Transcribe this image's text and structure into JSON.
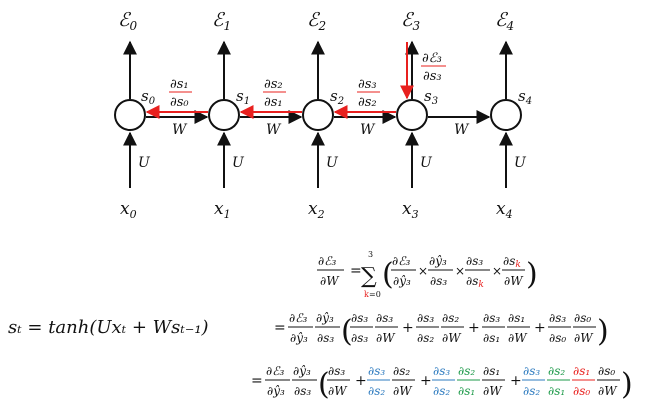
{
  "diagram": {
    "error_terms": [
      {
        "sym": "ℰ",
        "sub": "0"
      },
      {
        "sym": "ℰ",
        "sub": "1"
      },
      {
        "sym": "ℰ",
        "sub": "2"
      },
      {
        "sym": "ℰ",
        "sub": "3"
      },
      {
        "sym": "ℰ",
        "sub": "4"
      }
    ],
    "states": [
      {
        "sym": "s",
        "sub": "0"
      },
      {
        "sym": "s",
        "sub": "1"
      },
      {
        "sym": "s",
        "sub": "2"
      },
      {
        "sym": "s",
        "sub": "3"
      },
      {
        "sym": "s",
        "sub": "4"
      }
    ],
    "inputs": [
      {
        "sym": "x",
        "sub": "0"
      },
      {
        "sym": "x",
        "sub": "1"
      },
      {
        "sym": "x",
        "sub": "2"
      },
      {
        "sym": "x",
        "sub": "3"
      },
      {
        "sym": "x",
        "sub": "4"
      }
    ],
    "input_weight": "U",
    "recurrent_weight": "W",
    "grad_labels": [
      {
        "num": "∂s₁",
        "den": "∂s₀"
      },
      {
        "num": "∂s₂",
        "den": "∂s₁"
      },
      {
        "num": "∂s₃",
        "den": "∂s₂"
      },
      {
        "num": "∂ℰ₃",
        "den": "∂s₃"
      }
    ]
  },
  "state_equation": "sₜ = tanh(Uxₜ + Wsₜ₋₁)",
  "gradient_equations": {
    "line1_lhs": {
      "num": "∂ℰ₃",
      "den": "∂W"
    },
    "sum_top": "3",
    "sum_bottom": "k=0",
    "colors": {
      "red": "#e8201e",
      "blue": "#2e7bbf",
      "green": "#1e9a4a",
      "black": "#111111"
    }
  }
}
